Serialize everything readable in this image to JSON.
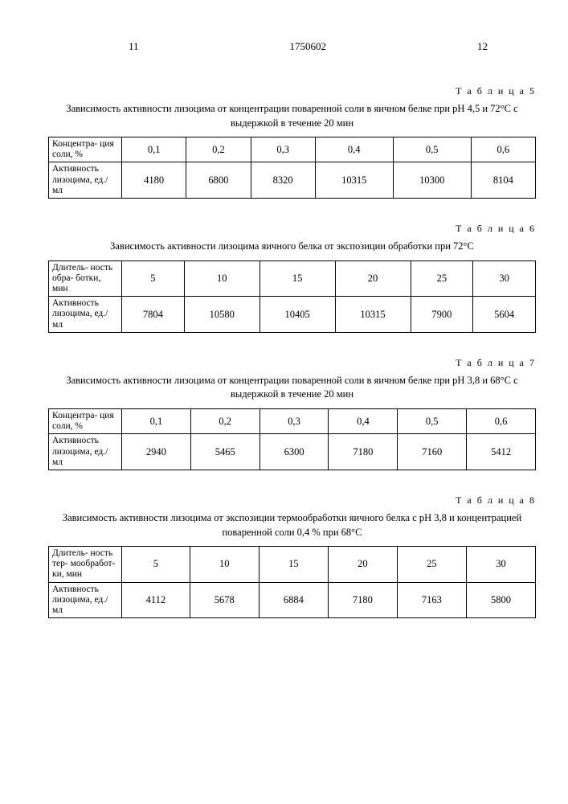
{
  "header": {
    "left_page": "11",
    "doc_number": "1750602",
    "right_page": "12"
  },
  "common": {
    "conc_header": "Концентра-\nция соли, %",
    "activity_header": "Активность\nлизоцима,\nед./мл",
    "duration_header": "Длитель-\nность обра-\nботки, мин",
    "duration_header_long": "Длитель-\nность тер-\nмообработ-\nки, мин"
  },
  "table5": {
    "label": "Т а б л и ц а 5",
    "caption": "Зависимость активности лизоцима от концентрации поваренной соли в яичном белке при pH 4,5 и 72°С с выдержкой в течение 20 мин",
    "cols": [
      "0,1",
      "0,2",
      "0,3",
      "0,4",
      "0,5",
      "0,6"
    ],
    "values": [
      "4180",
      "6800",
      "8320",
      "10315",
      "10300",
      "8104"
    ]
  },
  "table6": {
    "label": "Т а б л и ц а 6",
    "caption": "Зависимость активности лизоцима яичного белка от экспозиции обработки при 72°С",
    "cols": [
      "5",
      "10",
      "15",
      "20",
      "25",
      "30"
    ],
    "values": [
      "7804",
      "10580",
      "10405",
      "10315",
      "7900",
      "5604"
    ]
  },
  "table7": {
    "label": "Т а б л и ц а 7",
    "caption": "Зависимость активности лизоцима от концентрации поваренной соли в яичном белке при pH 3,8 и 68°С с выдержкой в течение 20 мин",
    "cols": [
      "0,1",
      "0,2",
      "0,3",
      "0,4",
      "0,5",
      "0,6"
    ],
    "values": [
      "2940",
      "5465",
      "6300",
      "7180",
      "7160",
      "5412"
    ]
  },
  "table8": {
    "label": "Т а б л и ц а 8",
    "caption": "Зависимость активности лизоцима от экспозиции термообработки яичного белка с pH 3,8 и концентрацией поваренной соли 0,4 % при 68°С",
    "cols": [
      "5",
      "10",
      "15",
      "20",
      "25",
      "30"
    ],
    "values": [
      "4112",
      "5678",
      "6884",
      "7180",
      "7163",
      "5800"
    ]
  }
}
